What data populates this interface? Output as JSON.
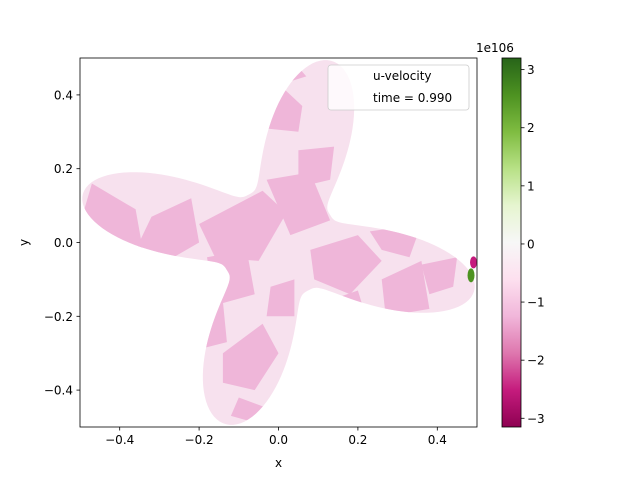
{
  "chart_data": {
    "type": "heatmap",
    "title": "",
    "xlabel": "x",
    "ylabel": "y",
    "xlim": [
      -0.5,
      0.5
    ],
    "ylim": [
      -0.5,
      0.5
    ],
    "xticks": [
      -0.4,
      -0.2,
      0.0,
      0.2,
      0.4
    ],
    "yticks": [
      -0.4,
      -0.2,
      0.0,
      0.2,
      0.4
    ],
    "xtick_labels": [
      "−0.4",
      "−0.2",
      "0.0",
      "0.2",
      "0.4"
    ],
    "ytick_labels": [
      "−0.4",
      "−0.2",
      "0.0",
      "0.2",
      "0.4"
    ],
    "grid": false,
    "legend": {
      "placement": "upper right",
      "line1": "u-velocity",
      "line2": "time = 0.990"
    },
    "colorbar": {
      "colormap": "PiYG",
      "offset_label": "1e106",
      "range": [
        -3.15,
        3.2
      ],
      "ticks": [
        -3,
        -2,
        -1,
        0,
        1,
        2,
        3
      ],
      "tick_labels": [
        "−3",
        "−2",
        "−1",
        "0",
        "1",
        "2",
        "3"
      ]
    },
    "field": {
      "description_colors": {
        "light_pink": "#f7e1ee",
        "mid_pink": "#efb6d9",
        "magenta": "#c51b7d",
        "green": "#4d9221"
      },
      "approx_background_value": -0.5,
      "approx_patch_value": -1.0,
      "hotspot": {
        "x": 0.49,
        "y": -0.07,
        "values": [
          -3.0,
          3.0
        ]
      },
      "domain_shape": "four-lobed rotated flower (lobes toward approx. 75°, 165°, 255°, 345°)"
    }
  }
}
